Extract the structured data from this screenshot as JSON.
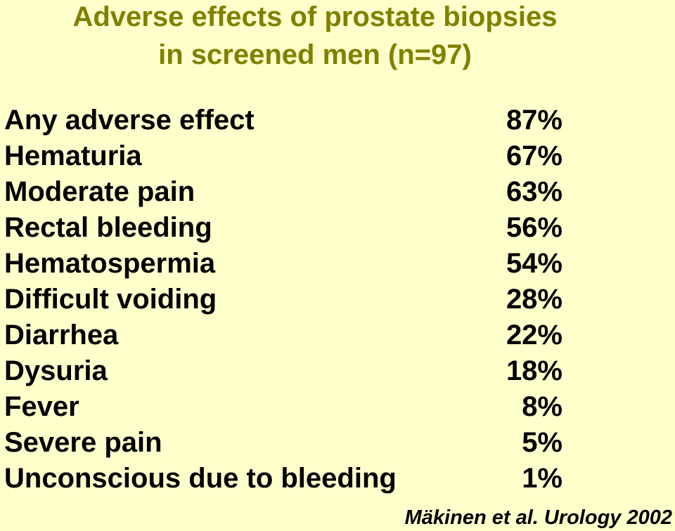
{
  "title": {
    "line1": "Adverse effects of prostate biopsies",
    "line2": "in screened men (n=97)"
  },
  "rows": [
    {
      "label": "Any adverse effect",
      "value": "87%"
    },
    {
      "label": "Hematuria",
      "value": "67%"
    },
    {
      "label": "Moderate pain",
      "value": "63%"
    },
    {
      "label": "Rectal bleeding",
      "value": "56%"
    },
    {
      "label": "Hematospermia",
      "value": "54%"
    },
    {
      "label": "Difficult voiding",
      "value": "28%"
    },
    {
      "label": "Diarrhea",
      "value": "22%"
    },
    {
      "label": "Dysuria",
      "value": "18%"
    },
    {
      "label": "Fever",
      "value": "8%"
    },
    {
      "label": "Severe pain",
      "value": "5%"
    },
    {
      "label": "Unconscious due to bleeding",
      "value": "1%"
    }
  ],
  "citation": "Mäkinen et al. Urology 2002",
  "colors": {
    "background": "#ffffcc",
    "title": "#808000",
    "text": "#000000"
  }
}
